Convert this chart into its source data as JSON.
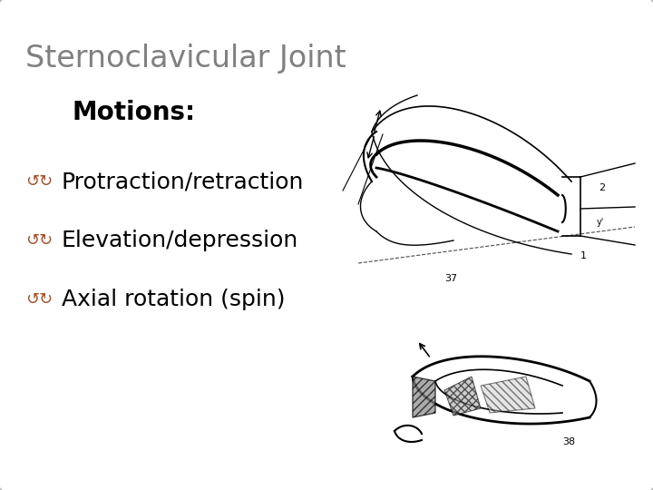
{
  "title": "Sternoclavicular Joint",
  "subtitle": "Motions:",
  "bullet_points": [
    "Protraction/retraction",
    "Elevation/depression",
    "Axial rotation (spin)"
  ],
  "title_color": "#808080",
  "subtitle_color": "#000000",
  "bullet_text_color": "#000000",
  "bullet_icon_color": "#A0522D",
  "background_color": "#D0D0D0",
  "inner_bg_color": "#FFFFFF",
  "title_fontsize": 24,
  "subtitle_fontsize": 20,
  "bullet_fontsize": 18,
  "fig_width": 7.2,
  "fig_height": 5.4
}
